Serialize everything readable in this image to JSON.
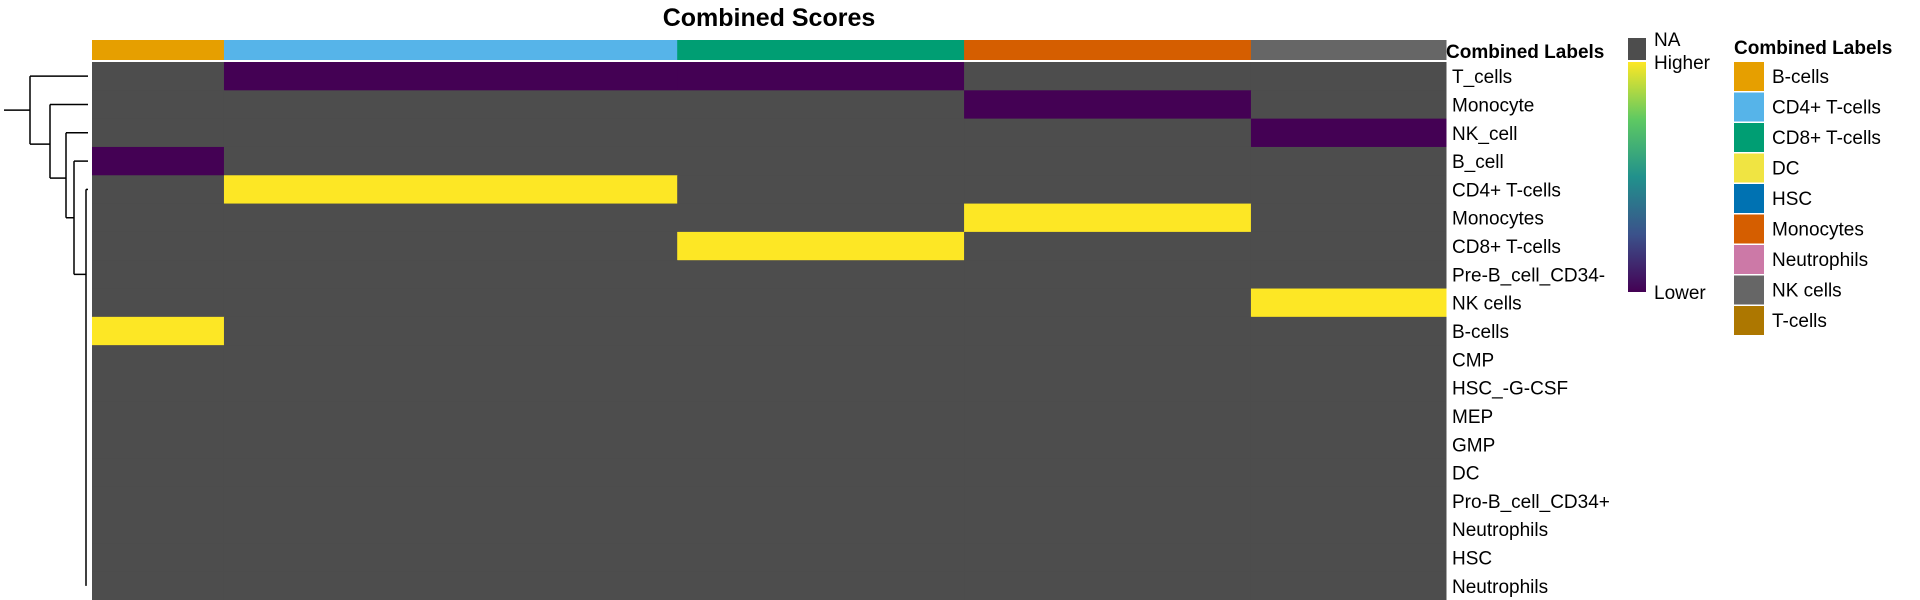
{
  "chart_data": {
    "type": "heatmap",
    "title": "Combined Scores",
    "annotation_bar_label": "Combined Labels",
    "column_groups": [
      {
        "label": "B-cells",
        "color": "#E69F00",
        "n": 46
      },
      {
        "label": "CD4+ T-cells",
        "color": "#56B4E9",
        "n": 158
      },
      {
        "label": "CD8+ T-cells",
        "color": "#009E73",
        "n": 100
      },
      {
        "label": "Monocytes",
        "color": "#D55E00",
        "n": 100
      },
      {
        "label": "NK cells",
        "color": "#666666",
        "n": 68
      }
    ],
    "rows": [
      "T_cells",
      "Monocyte",
      "NK_cell",
      "B_cell",
      "CD4+ T-cells",
      "Monocytes",
      "CD8+ T-cells",
      "Pre-B_cell_CD34-",
      "NK cells",
      "B-cells",
      "CMP",
      "HSC_-G-CSF",
      "MEP",
      "GMP",
      "DC",
      "Pro-B_cell_CD34+",
      "Neutrophils",
      "HSC",
      "Neutrophils"
    ],
    "block_values": [
      [
        "NA",
        "Lower",
        "Lower",
        "NA",
        "NA"
      ],
      [
        "NA",
        "NA",
        "NA",
        "Lower",
        "NA"
      ],
      [
        "NA",
        "NA",
        "NA",
        "NA",
        "Lower"
      ],
      [
        "Lower",
        "NA",
        "NA",
        "NA",
        "NA"
      ],
      [
        "NA",
        "Higher",
        "NA",
        "NA",
        "NA"
      ],
      [
        "NA",
        "NA",
        "NA",
        "Higher",
        "NA"
      ],
      [
        "NA",
        "NA",
        "Higher",
        "NA",
        "NA"
      ],
      [
        "NA",
        "NA",
        "NA",
        "NA",
        "NA"
      ],
      [
        "NA",
        "NA",
        "NA",
        "NA",
        "Higher"
      ],
      [
        "Higher",
        "NA",
        "NA",
        "NA",
        "NA"
      ],
      [
        "NA",
        "NA",
        "NA",
        "NA",
        "NA"
      ],
      [
        "NA",
        "NA",
        "NA",
        "NA",
        "NA"
      ],
      [
        "NA",
        "NA",
        "NA",
        "NA",
        "NA"
      ],
      [
        "NA",
        "NA",
        "NA",
        "NA",
        "NA"
      ],
      [
        "NA",
        "NA",
        "NA",
        "NA",
        "NA"
      ],
      [
        "NA",
        "NA",
        "NA",
        "NA",
        "NA"
      ],
      [
        "NA",
        "NA",
        "NA",
        "NA",
        "NA"
      ],
      [
        "NA",
        "NA",
        "NA",
        "NA",
        "NA"
      ],
      [
        "NA",
        "NA",
        "NA",
        "NA",
        "NA"
      ]
    ],
    "color_scale": {
      "na_label": "NA",
      "high_label": "Higher",
      "low_label": "Lower",
      "na_color": "#4d4d4d",
      "gradient": [
        "#fde725",
        "#5ec962",
        "#21918c",
        "#3b528b",
        "#440154"
      ]
    },
    "legend": {
      "title": "Combined Labels",
      "items": [
        {
          "label": "B-cells",
          "color": "#E69F00"
        },
        {
          "label": "CD4+ T-cells",
          "color": "#56B4E9"
        },
        {
          "label": "CD8+ T-cells",
          "color": "#009E73"
        },
        {
          "label": "DC",
          "color": "#F0E442"
        },
        {
          "label": "HSC",
          "color": "#0072B2"
        },
        {
          "label": "Monocytes",
          "color": "#D55E00"
        },
        {
          "label": "Neutrophils",
          "color": "#CC79A7"
        },
        {
          "label": "NK cells",
          "color": "#666666"
        },
        {
          "label": "T-cells",
          "color": "#AD7700"
        }
      ]
    }
  }
}
